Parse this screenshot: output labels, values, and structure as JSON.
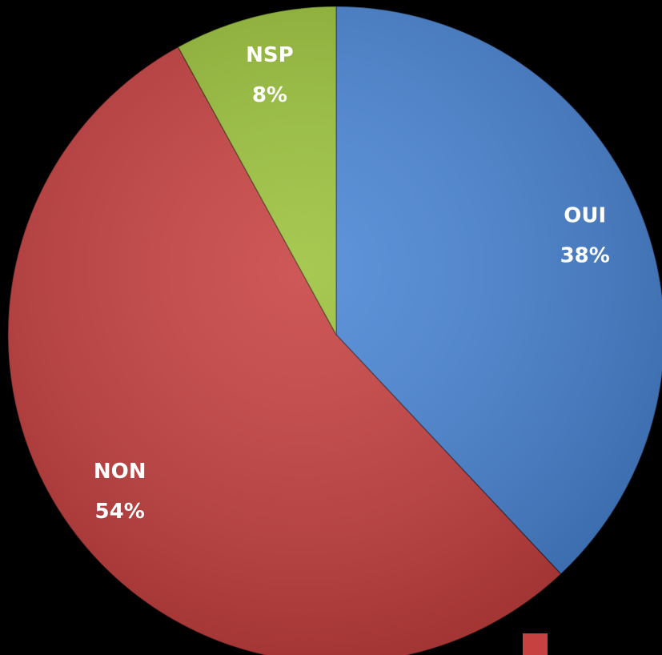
{
  "chart_data": {
    "type": "pie",
    "categories": [
      "OUI",
      "NON",
      "NSP"
    ],
    "values": [
      38,
      54,
      8
    ],
    "value_labels": [
      "38%",
      "54%",
      "8%"
    ],
    "colors": [
      "#4a86d6",
      "#c84141",
      "#9bc23b"
    ]
  }
}
